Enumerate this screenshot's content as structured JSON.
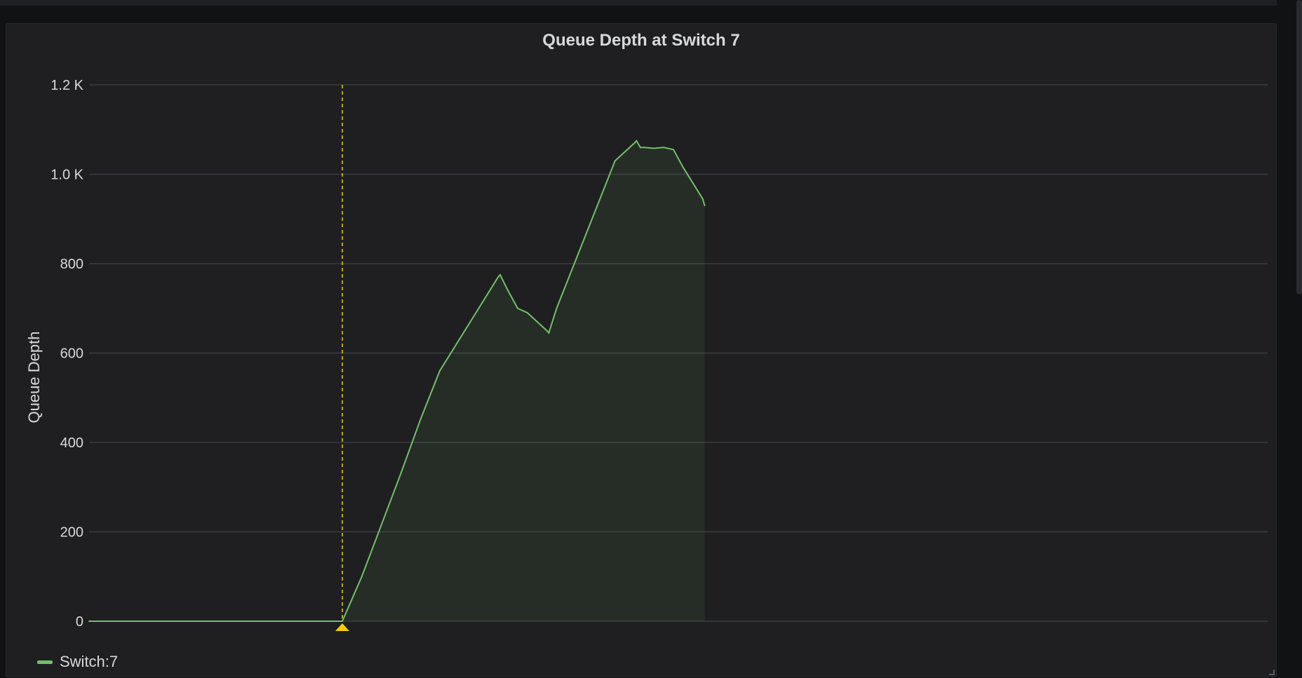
{
  "panel": {
    "title": "Queue Depth at Switch 7"
  },
  "colors": {
    "series": "#73bf69",
    "annotation": "#f2cc0c",
    "grid": "#3a3b40",
    "background": "#1f1f22"
  },
  "chart_data": {
    "type": "area",
    "title": "Queue Depth at Switch 7",
    "xlabel": "",
    "ylabel": "Queue Depth",
    "ylim": [
      0,
      1200
    ],
    "y_ticks": [
      "0",
      "200",
      "400",
      "600",
      "800",
      "1.0 K",
      "1.2 K"
    ],
    "grid": true,
    "legend_position": "bottom-left",
    "annotation_x": 130,
    "series": [
      {
        "name": "Switch:7",
        "x": [
          0,
          20,
          40,
          60,
          80,
          100,
          120,
          130,
          140,
          150,
          160,
          170,
          180,
          190,
          200,
          210,
          211,
          215,
          220,
          225,
          230,
          235,
          236,
          240,
          250,
          260,
          270,
          280,
          281,
          283,
          285,
          290,
          295,
          300,
          305,
          310,
          315,
          316
        ],
        "values": [
          0,
          0,
          0,
          0,
          0,
          0,
          0,
          0,
          100,
          215,
          330,
          450,
          560,
          630,
          700,
          770,
          775,
          740,
          700,
          690,
          670,
          650,
          645,
          700,
          810,
          920,
          1030,
          1070,
          1075,
          1060,
          1060,
          1058,
          1060,
          1055,
          1015,
          980,
          945,
          930
        ]
      }
    ]
  },
  "legend": {
    "label": "Switch:7"
  }
}
